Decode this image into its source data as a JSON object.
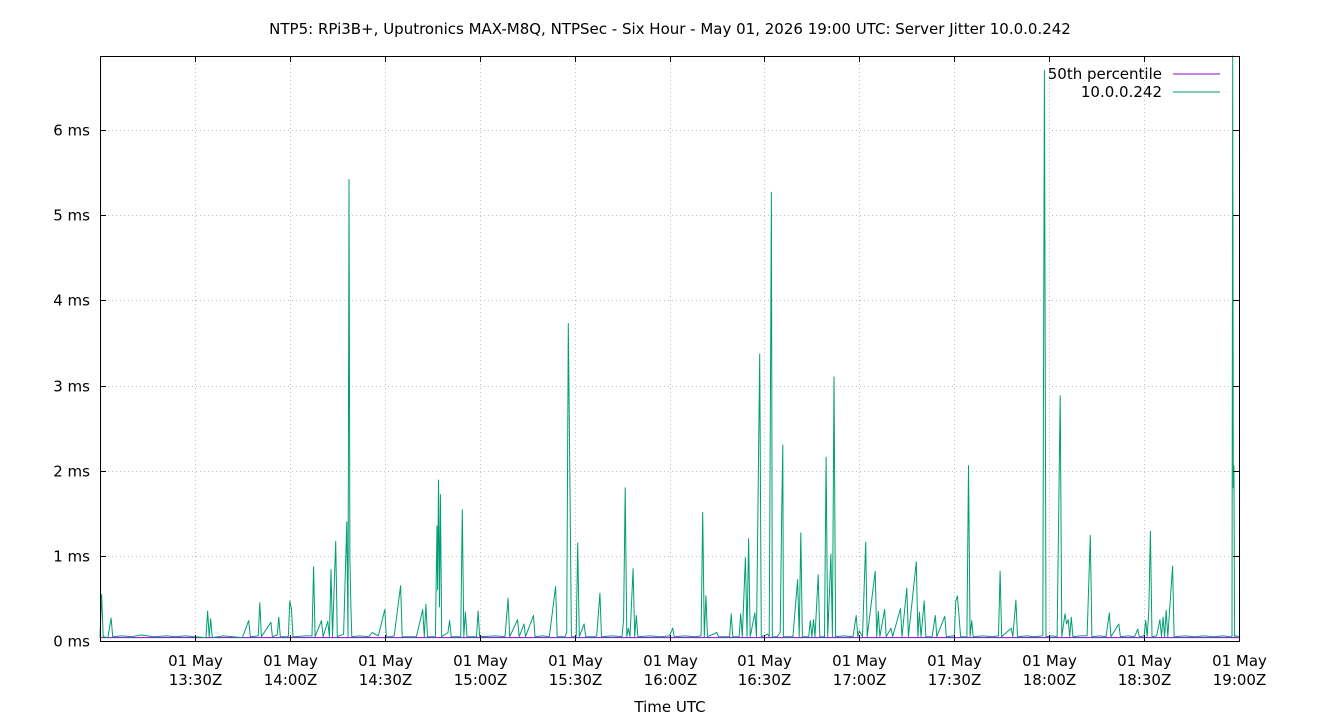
{
  "chart_data": {
    "type": "line",
    "title": "NTP5: RPi3B+, Uputronics MAX-M8Q, NTPSec - Six Hour - May 01, 2026 19:00 UTC: Server Jitter 10.0.0.242",
    "xlabel": "Time UTC",
    "ylabel": "",
    "x_range_minutes": [
      -360,
      0
    ],
    "ylim": [
      0,
      6.87
    ],
    "grid": true,
    "legend_position": "top-right",
    "y_ticks": [
      {
        "value": 0,
        "label": "0 ms"
      },
      {
        "value": 1,
        "label": "1 ms"
      },
      {
        "value": 2,
        "label": "2 ms"
      },
      {
        "value": 3,
        "label": "3 ms"
      },
      {
        "value": 4,
        "label": "4 ms"
      },
      {
        "value": 5,
        "label": "5 ms"
      },
      {
        "value": 6,
        "label": "6 ms"
      }
    ],
    "x_ticks": [
      {
        "minute": -330,
        "date": "01 May",
        "time": "13:30Z"
      },
      {
        "minute": -300,
        "date": "01 May",
        "time": "14:00Z"
      },
      {
        "minute": -270,
        "date": "01 May",
        "time": "14:30Z"
      },
      {
        "minute": -240,
        "date": "01 May",
        "time": "15:00Z"
      },
      {
        "minute": -210,
        "date": "01 May",
        "time": "15:30Z"
      },
      {
        "minute": -180,
        "date": "01 May",
        "time": "16:00Z"
      },
      {
        "minute": -150,
        "date": "01 May",
        "time": "16:30Z"
      },
      {
        "minute": -120,
        "date": "01 May",
        "time": "17:00Z"
      },
      {
        "minute": -90,
        "date": "01 May",
        "time": "17:30Z"
      },
      {
        "minute": -60,
        "date": "01 May",
        "time": "18:00Z"
      },
      {
        "minute": -30,
        "date": "01 May",
        "time": "18:30Z"
      },
      {
        "minute": 0,
        "date": "01 May",
        "time": "19:00Z"
      }
    ],
    "series": [
      {
        "name": "50th percentile",
        "color": "#9400d3",
        "values": [
          0.04
        ]
      },
      {
        "name": "10.0.0.242",
        "color": "#009e73",
        "points": [
          [
            -360,
            0.04
          ],
          [
            -359.5,
            0.55
          ],
          [
            -359,
            0.05
          ],
          [
            -357.5,
            0.04
          ],
          [
            -356.5,
            0.27
          ],
          [
            -356,
            0.05
          ],
          [
            -353,
            0.06
          ],
          [
            -350,
            0.05
          ],
          [
            -347,
            0.07
          ],
          [
            -343,
            0.05
          ],
          [
            -339,
            0.06
          ],
          [
            -336,
            0.05
          ],
          [
            -333,
            0.06
          ],
          [
            -330,
            0.05
          ],
          [
            -326.5,
            0.04
          ],
          [
            -326,
            0.35
          ],
          [
            -325.5,
            0.05
          ],
          [
            -325,
            0.26
          ],
          [
            -324.5,
            0.04
          ],
          [
            -321,
            0.06
          ],
          [
            -318,
            0.05
          ],
          [
            -315,
            0.04
          ],
          [
            -313,
            0.24
          ],
          [
            -312.5,
            0.05
          ],
          [
            -310,
            0.06
          ],
          [
            -309.5,
            0.45
          ],
          [
            -309,
            0.05
          ],
          [
            -306,
            0.22
          ],
          [
            -305.5,
            0.05
          ],
          [
            -304,
            0.07
          ],
          [
            -303.5,
            0.28
          ],
          [
            -303,
            0.05
          ],
          [
            -300.5,
            0.05
          ],
          [
            -300,
            0.47
          ],
          [
            -299.5,
            0.38
          ],
          [
            -299,
            0.05
          ],
          [
            -295,
            0.06
          ],
          [
            -293,
            0.06
          ],
          [
            -292.5,
            0.87
          ],
          [
            -292,
            0.05
          ],
          [
            -290,
            0.24
          ],
          [
            -289.5,
            0.05
          ],
          [
            -288,
            0.23
          ],
          [
            -287.5,
            0.05
          ],
          [
            -287,
            0.84
          ],
          [
            -286.5,
            0.05
          ],
          [
            -285.5,
            1.17
          ],
          [
            -285,
            0.05
          ],
          [
            -283,
            0.08
          ],
          [
            -282,
            1.4
          ],
          [
            -281.6,
            0.05
          ],
          [
            -281.3,
            5.42
          ],
          [
            -281,
            0.96
          ],
          [
            -280.7,
            0.4
          ],
          [
            -280.4,
            0.05
          ],
          [
            -278,
            0.06
          ],
          [
            -275,
            0.05
          ],
          [
            -274,
            0.1
          ],
          [
            -272,
            0.06
          ],
          [
            -270,
            0.37
          ],
          [
            -269.5,
            0.05
          ],
          [
            -268,
            0.05
          ],
          [
            -267,
            0.06
          ],
          [
            -265,
            0.65
          ],
          [
            -264.5,
            0.05
          ],
          [
            -260,
            0.05
          ],
          [
            -258,
            0.37
          ],
          [
            -257.5,
            0.05
          ],
          [
            -257,
            0.43
          ],
          [
            -256.5,
            0.05
          ],
          [
            -254,
            0.05
          ],
          [
            -253.5,
            1.35
          ],
          [
            -253.3,
            0.6
          ],
          [
            -253,
            1.89
          ],
          [
            -252.7,
            0.4
          ],
          [
            -252.4,
            1.72
          ],
          [
            -252,
            0.05
          ],
          [
            -250,
            0.1
          ],
          [
            -249.5,
            0.24
          ],
          [
            -249,
            0.05
          ],
          [
            -247,
            0.05
          ],
          [
            -246,
            0.05
          ],
          [
            -245.5,
            1.54
          ],
          [
            -245,
            0.05
          ],
          [
            -244.5,
            0.34
          ],
          [
            -244,
            0.05
          ],
          [
            -241,
            0.05
          ],
          [
            -240.5,
            0.35
          ],
          [
            -240,
            0.05
          ],
          [
            -235,
            0.06
          ],
          [
            -232,
            0.05
          ],
          [
            -231,
            0.5
          ],
          [
            -230.5,
            0.05
          ],
          [
            -228,
            0.25
          ],
          [
            -227.5,
            0.05
          ],
          [
            -226,
            0.2
          ],
          [
            -225.5,
            0.05
          ],
          [
            -223,
            0.3
          ],
          [
            -222.5,
            0.05
          ],
          [
            -220,
            0.06
          ],
          [
            -218,
            0.05
          ],
          [
            -216,
            0.64
          ],
          [
            -215.5,
            0.05
          ],
          [
            -213,
            0.05
          ],
          [
            -212.5,
            0.1
          ],
          [
            -212,
            3.73
          ],
          [
            -211.5,
            2.0
          ],
          [
            -211,
            0.05
          ],
          [
            -209.5,
            0.05
          ],
          [
            -209,
            1.15
          ],
          [
            -208.5,
            0.05
          ],
          [
            -207,
            0.2
          ],
          [
            -206.5,
            0.05
          ],
          [
            -204,
            0.05
          ],
          [
            -203,
            0.06
          ],
          [
            -202,
            0.56
          ],
          [
            -201.5,
            0.05
          ],
          [
            -198,
            0.06
          ],
          [
            -195,
            0.05
          ],
          [
            -194.5,
            0.25
          ],
          [
            -194,
            1.8
          ],
          [
            -193.5,
            0.05
          ],
          [
            -193,
            0.15
          ],
          [
            -192.5,
            0.05
          ],
          [
            -191.5,
            0.85
          ],
          [
            -191,
            0.05
          ],
          [
            -190.5,
            0.3
          ],
          [
            -190,
            0.05
          ],
          [
            -186,
            0.06
          ],
          [
            -183,
            0.05
          ],
          [
            -180,
            0.06
          ],
          [
            -179,
            0.15
          ],
          [
            -178.5,
            0.05
          ],
          [
            -175,
            0.06
          ],
          [
            -172,
            0.05
          ],
          [
            -170,
            0.06
          ],
          [
            -169.5,
            1.51
          ],
          [
            -169,
            0.05
          ],
          [
            -168.5,
            0.53
          ],
          [
            -168,
            0.05
          ],
          [
            -165,
            0.1
          ],
          [
            -164.5,
            0.05
          ],
          [
            -161,
            0.05
          ],
          [
            -160.5,
            0.32
          ],
          [
            -160,
            0.05
          ],
          [
            -158,
            0.05
          ],
          [
            -157.5,
            0.32
          ],
          [
            -157,
            0.05
          ],
          [
            -156,
            0.98
          ],
          [
            -155.5,
            0.05
          ],
          [
            -155,
            1.2
          ],
          [
            -154.5,
            0.05
          ],
          [
            -153,
            0.33
          ],
          [
            -152.5,
            0.05
          ],
          [
            -151.5,
            3.37
          ],
          [
            -151,
            0.05
          ],
          [
            -149,
            0.08
          ],
          [
            -148.5,
            0.05
          ],
          [
            -148,
            3.5
          ],
          [
            -147.8,
            5.27
          ],
          [
            -147.5,
            0.05
          ],
          [
            -146,
            0.05
          ],
          [
            -145,
            0.1
          ],
          [
            -144.5,
            1.58
          ],
          [
            -144.2,
            2.3
          ],
          [
            -144,
            0.05
          ],
          [
            -141,
            0.05
          ],
          [
            -139.5,
            0.72
          ],
          [
            -139,
            0.05
          ],
          [
            -138.5,
            1.27
          ],
          [
            -138,
            0.05
          ],
          [
            -136,
            0.05
          ],
          [
            -135.5,
            0.24
          ],
          [
            -135,
            0.05
          ],
          [
            -134.5,
            0.25
          ],
          [
            -134,
            0.05
          ],
          [
            -133,
            0.78
          ],
          [
            -132.5,
            0.05
          ],
          [
            -131,
            0.05
          ],
          [
            -130.5,
            2.16
          ],
          [
            -130,
            0.05
          ],
          [
            -129,
            1.02
          ],
          [
            -128.5,
            0.05
          ],
          [
            -128,
            3.1
          ],
          [
            -127.5,
            0.05
          ],
          [
            -125,
            0.06
          ],
          [
            -122,
            0.05
          ],
          [
            -121,
            0.3
          ],
          [
            -120.5,
            0.05
          ],
          [
            -120,
            0.12
          ],
          [
            -119,
            0.05
          ],
          [
            -118,
            1.16
          ],
          [
            -117.5,
            0.05
          ],
          [
            -115,
            0.82
          ],
          [
            -114.5,
            0.05
          ],
          [
            -114,
            0.35
          ],
          [
            -113.5,
            0.05
          ],
          [
            -112,
            0.37
          ],
          [
            -111.5,
            0.05
          ],
          [
            -110,
            0.15
          ],
          [
            -109.5,
            0.05
          ],
          [
            -107,
            0.38
          ],
          [
            -106.5,
            0.05
          ],
          [
            -105,
            0.62
          ],
          [
            -104.5,
            0.05
          ],
          [
            -102,
            0.93
          ],
          [
            -101.5,
            0.05
          ],
          [
            -101,
            0.34
          ],
          [
            -100.5,
            0.05
          ],
          [
            -99.5,
            0.47
          ],
          [
            -99,
            0.05
          ],
          [
            -97,
            0.05
          ],
          [
            -96,
            0.3
          ],
          [
            -95.5,
            0.05
          ],
          [
            -93,
            0.29
          ],
          [
            -92.5,
            0.05
          ],
          [
            -90,
            0.06
          ],
          [
            -89.5,
            0.47
          ],
          [
            -89,
            0.53
          ],
          [
            -88.5,
            0.3
          ],
          [
            -88,
            0.05
          ],
          [
            -86,
            0.05
          ],
          [
            -85.5,
            2.06
          ],
          [
            -85,
            0.05
          ],
          [
            -84.5,
            0.24
          ],
          [
            -84,
            0.05
          ],
          [
            -81,
            0.06
          ],
          [
            -78,
            0.05
          ],
          [
            -76,
            0.06
          ],
          [
            -75.5,
            0.82
          ],
          [
            -75,
            0.05
          ],
          [
            -72,
            0.15
          ],
          [
            -71.5,
            0.05
          ],
          [
            -70.5,
            0.48
          ],
          [
            -70,
            0.05
          ],
          [
            -67,
            0.06
          ],
          [
            -65,
            0.05
          ],
          [
            -62,
            0.06
          ],
          [
            -61.5,
            6.7
          ],
          [
            -61,
            0.05
          ],
          [
            -59,
            0.06
          ],
          [
            -57.5,
            0.05
          ],
          [
            -56.5,
            2.88
          ],
          [
            -56,
            0.05
          ],
          [
            -55,
            0.32
          ],
          [
            -54.5,
            0.2
          ],
          [
            -54,
            0.25
          ],
          [
            -53.5,
            0.05
          ],
          [
            -53,
            0.28
          ],
          [
            -52.5,
            0.05
          ],
          [
            -50,
            0.06
          ],
          [
            -48,
            0.06
          ],
          [
            -47,
            1.24
          ],
          [
            -46.5,
            0.05
          ],
          [
            -44,
            0.06
          ],
          [
            -42,
            0.05
          ],
          [
            -41,
            0.33
          ],
          [
            -40.5,
            0.05
          ],
          [
            -38,
            0.2
          ],
          [
            -37.5,
            0.05
          ],
          [
            -35,
            0.06
          ],
          [
            -33,
            0.05
          ],
          [
            -32,
            0.14
          ],
          [
            -31.5,
            0.05
          ],
          [
            -30,
            0.06
          ],
          [
            -29.5,
            0.24
          ],
          [
            -29,
            0.05
          ],
          [
            -28.5,
            0.36
          ],
          [
            -28,
            1.29
          ],
          [
            -27.5,
            0.05
          ],
          [
            -26,
            0.06
          ],
          [
            -25,
            0.25
          ],
          [
            -24.5,
            0.05
          ],
          [
            -24,
            0.28
          ],
          [
            -23.5,
            0.05
          ],
          [
            -23,
            0.36
          ],
          [
            -22.5,
            0.05
          ],
          [
            -21,
            0.88
          ],
          [
            -20.5,
            0.05
          ],
          [
            -17,
            0.06
          ],
          [
            -14,
            0.05
          ],
          [
            -11,
            0.06
          ],
          [
            -8,
            0.05
          ],
          [
            -5,
            0.06
          ],
          [
            -3,
            0.05
          ],
          [
            -2.2,
            0.05
          ],
          [
            -2,
            6.87
          ],
          [
            -1.8,
            1.8
          ],
          [
            -1.6,
            2.06
          ],
          [
            -1.4,
            0.05
          ],
          [
            -1,
            0.06
          ],
          [
            0,
            0.05
          ]
        ]
      }
    ]
  }
}
